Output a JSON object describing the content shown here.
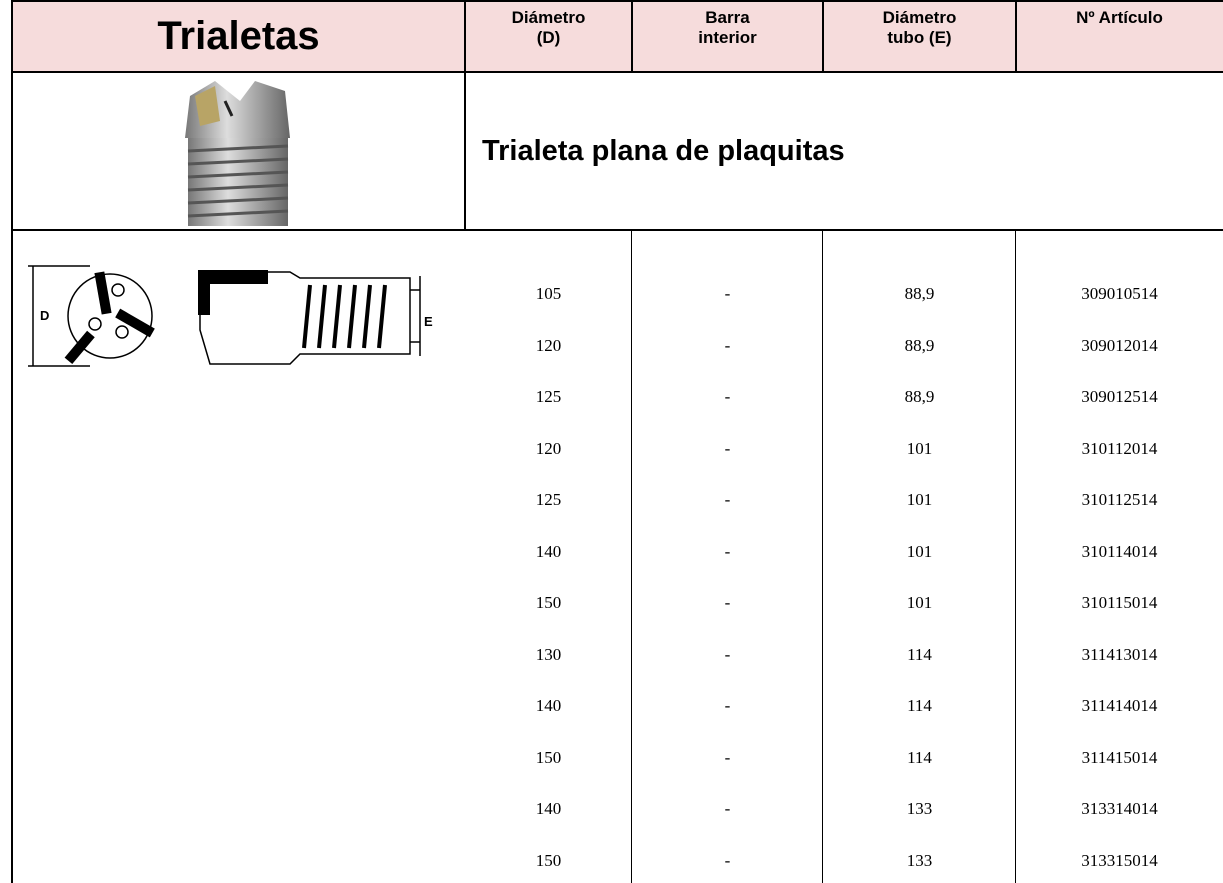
{
  "header": {
    "title": "Trialetas",
    "columns": [
      [
        "Diámetro",
        "(D)"
      ],
      [
        "Barra",
        "interior"
      ],
      [
        "Diámetro",
        "tubo (E)"
      ],
      [
        "Nº  Artículo"
      ]
    ]
  },
  "section": {
    "title": "Trialeta plana de plaquitas"
  },
  "diagram": {
    "left_label": "D",
    "right_label": "E"
  },
  "table": {
    "rows": [
      [
        "105",
        "-",
        "88,9",
        "309010514"
      ],
      [
        "120",
        "-",
        "88,9",
        "309012014"
      ],
      [
        "125",
        "-",
        "88,9",
        "309012514"
      ],
      [
        "120",
        "-",
        "101",
        "310112014"
      ],
      [
        "125",
        "-",
        "101",
        "310112514"
      ],
      [
        "140",
        "-",
        "101",
        "310114014"
      ],
      [
        "150",
        "-",
        "101",
        "310115014"
      ],
      [
        "130",
        "-",
        "114",
        "311413014"
      ],
      [
        "140",
        "-",
        "114",
        "311414014"
      ],
      [
        "150",
        "-",
        "114",
        "311415014"
      ],
      [
        "140",
        "-",
        "133",
        "313314014"
      ],
      [
        "150",
        "-",
        "133",
        "313315014"
      ]
    ]
  }
}
